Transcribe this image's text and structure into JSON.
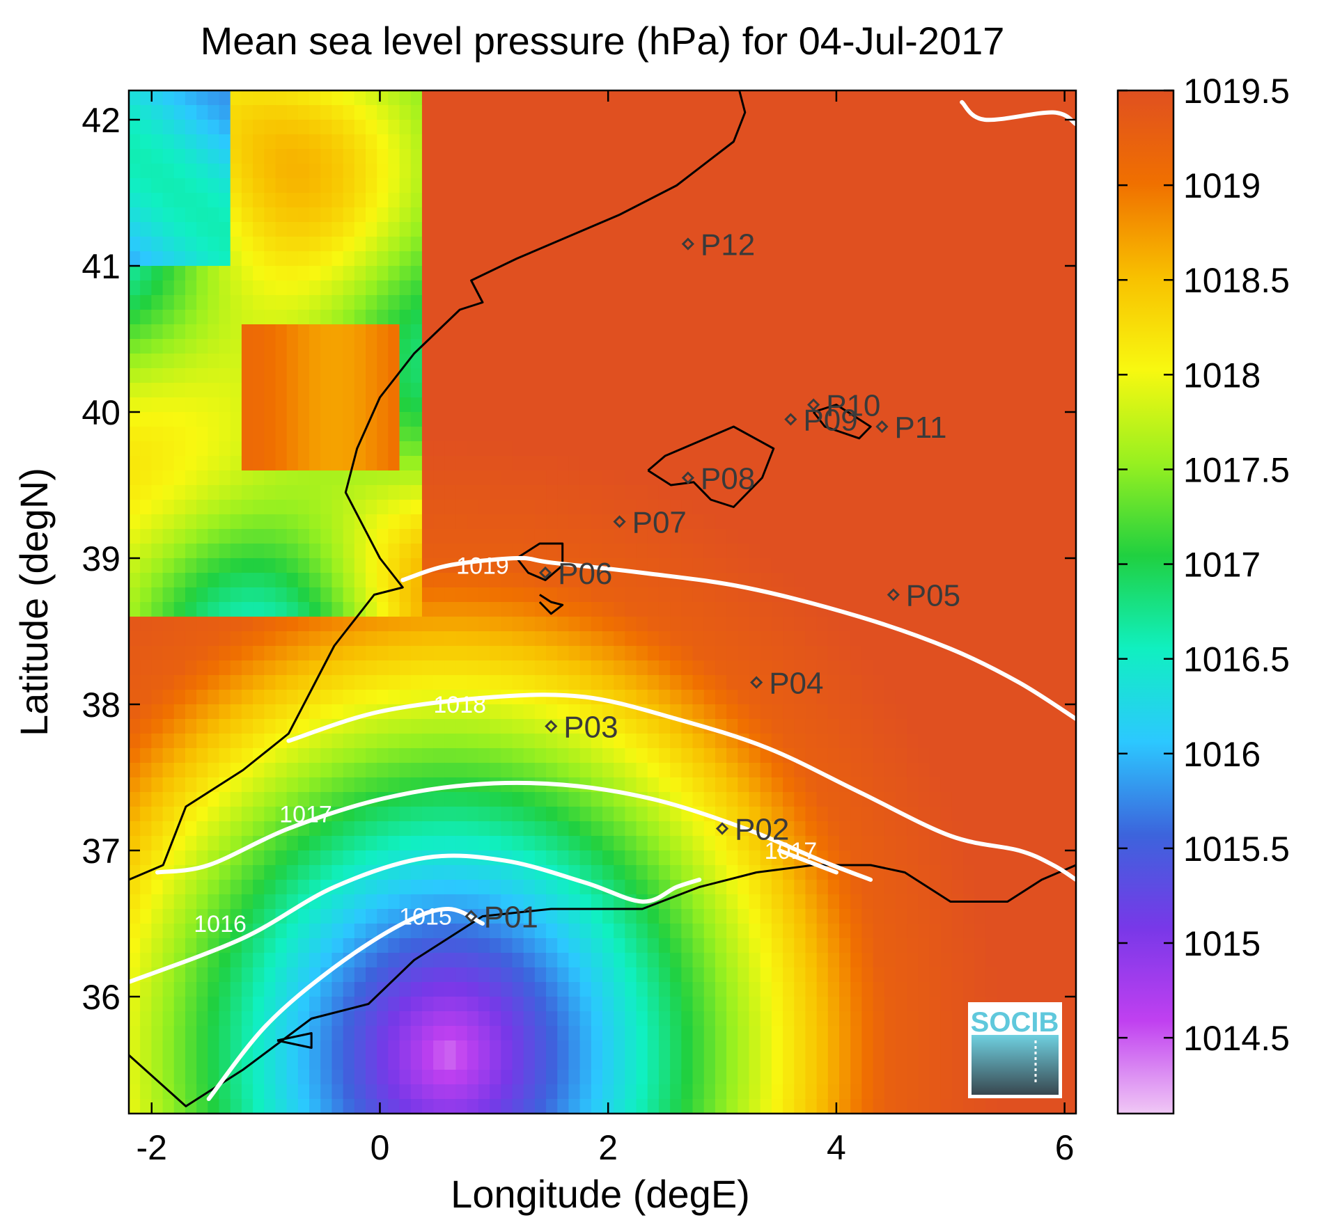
{
  "chart_data": {
    "type": "heatmap",
    "title": "Mean sea level pressure (hPa) for 04-Jul-2017",
    "xlabel": "Longitude (degE)",
    "ylabel": "Latitude (degN)",
    "xlim": [
      -2.2,
      6.1
    ],
    "ylim": [
      35.2,
      42.2
    ],
    "xticks": [
      -2,
      0,
      2,
      4,
      6
    ],
    "xtick_labels": [
      "-2",
      "0",
      "2",
      "4",
      "6"
    ],
    "yticks": [
      36,
      37,
      38,
      39,
      40,
      41,
      42
    ],
    "ytick_labels": [
      "36",
      "37",
      "38",
      "39",
      "40",
      "41",
      "42"
    ],
    "colorbar": {
      "range": [
        1014.1,
        1019.5
      ],
      "ticks": [
        1014.5,
        1015,
        1015.5,
        1016,
        1016.5,
        1017,
        1017.5,
        1018,
        1018.5,
        1019,
        1019.5
      ],
      "tick_labels": [
        "1014.5",
        "1015",
        "1015.5",
        "1016",
        "1016.5",
        "1017",
        "1017.5",
        "1018",
        "1018.5",
        "1019",
        "1019.5"
      ],
      "colors": [
        "#f0c8f5",
        "#c040f0",
        "#7838e8",
        "#3c64dc",
        "#2cc8ff",
        "#10f0c0",
        "#20d040",
        "#98f020",
        "#f8f810",
        "#f8c000",
        "#f07000",
        "#e05020"
      ]
    },
    "contour_lines": [
      {
        "level": 1015,
        "label": "1015",
        "points": [
          [
            -1.5,
            35.3
          ],
          [
            -1.0,
            35.8
          ],
          [
            -0.4,
            36.2
          ],
          [
            0.2,
            36.5
          ],
          [
            0.6,
            36.6
          ],
          [
            0.9,
            36.5
          ]
        ],
        "label_at": [
          0.4,
          36.55
        ]
      },
      {
        "level": 1016,
        "label": "1016",
        "points": [
          [
            -2.2,
            36.1
          ],
          [
            -1.2,
            36.4
          ],
          [
            -0.4,
            36.75
          ],
          [
            0.4,
            36.95
          ],
          [
            1.1,
            36.93
          ],
          [
            1.8,
            36.78
          ],
          [
            2.3,
            36.65
          ],
          [
            2.6,
            36.75
          ],
          [
            2.8,
            36.8
          ]
        ],
        "label_at": [
          -1.4,
          36.5
        ]
      },
      {
        "level": 1017,
        "label": "1017",
        "points": [
          [
            -1.95,
            36.85
          ],
          [
            -1.5,
            36.9
          ],
          [
            -0.8,
            37.15
          ],
          [
            0.0,
            37.35
          ],
          [
            0.8,
            37.45
          ],
          [
            1.6,
            37.45
          ],
          [
            2.4,
            37.35
          ],
          [
            3.2,
            37.15
          ],
          [
            3.9,
            36.92
          ],
          [
            4.3,
            36.8
          ]
        ],
        "label_at": [
          -0.65,
          37.25
        ]
      },
      {
        "level": 1017,
        "label": "1017",
        "points": [
          [
            3.5,
            37.0
          ],
          [
            4.0,
            36.85
          ]
        ],
        "label_at": [
          3.6,
          37.0
        ]
      },
      {
        "level": 1018,
        "label": "1018",
        "points": [
          [
            -0.8,
            37.75
          ],
          [
            0.0,
            37.95
          ],
          [
            1.0,
            38.05
          ],
          [
            1.8,
            38.05
          ],
          [
            2.6,
            37.9
          ],
          [
            3.4,
            37.7
          ],
          [
            4.2,
            37.4
          ],
          [
            5.0,
            37.1
          ],
          [
            5.6,
            37.0
          ],
          [
            5.9,
            36.9
          ],
          [
            6.1,
            36.8
          ]
        ],
        "label_at": [
          0.7,
          38.0
        ]
      },
      {
        "level": 1019,
        "label": "1019",
        "points": [
          [
            0.2,
            38.85
          ],
          [
            0.6,
            38.95
          ],
          [
            1.2,
            39.0
          ],
          [
            1.5,
            38.97
          ],
          [
            2.3,
            38.9
          ],
          [
            3.2,
            38.8
          ],
          [
            4.2,
            38.6
          ],
          [
            5.0,
            38.38
          ],
          [
            5.6,
            38.15
          ],
          [
            6.1,
            37.9
          ]
        ],
        "label_at": [
          0.9,
          38.95
        ]
      },
      {
        "level": 1019,
        "label": "1019",
        "points": [
          [
            5.1,
            42.12
          ],
          [
            5.3,
            42.0
          ],
          [
            5.9,
            42.05
          ],
          [
            6.1,
            41.97
          ]
        ],
        "label_at": null
      }
    ],
    "stations": [
      {
        "name": "P01",
        "lon": 0.8,
        "lat": 36.55
      },
      {
        "name": "P02",
        "lon": 3.0,
        "lat": 37.15
      },
      {
        "name": "P03",
        "lon": 1.5,
        "lat": 37.85
      },
      {
        "name": "P04",
        "lon": 3.3,
        "lat": 38.15
      },
      {
        "name": "P05",
        "lon": 4.5,
        "lat": 38.75
      },
      {
        "name": "P06",
        "lon": 1.45,
        "lat": 38.9
      },
      {
        "name": "P07",
        "lon": 2.1,
        "lat": 39.25
      },
      {
        "name": "P08",
        "lon": 2.7,
        "lat": 39.55
      },
      {
        "name": "P09",
        "lon": 3.6,
        "lat": 39.95
      },
      {
        "name": "P10",
        "lon": 3.8,
        "lat": 40.05
      },
      {
        "name": "P11",
        "lon": 4.4,
        "lat": 39.9
      },
      {
        "name": "P12",
        "lon": 2.7,
        "lat": 41.15
      }
    ]
  },
  "logo": {
    "text": "SOCIB"
  }
}
